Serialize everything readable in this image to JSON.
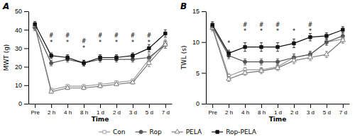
{
  "chart_data": [
    {
      "type": "line",
      "title": "A",
      "xlabel": "Time",
      "ylabel": "MWT (g)",
      "categories": [
        "Pre",
        "2 h",
        "4 h",
        "8 h",
        "1 d",
        "2 d",
        "3 d",
        "5 d",
        "7 d"
      ],
      "ylim": [
        0,
        50
      ],
      "yticks": [
        0,
        10,
        20,
        30,
        40,
        50
      ],
      "legend": "bottom",
      "series": [
        {
          "name": "Con",
          "color": "#999999",
          "marker": "square-open",
          "values": [
            42,
            7.5,
            9.5,
            9.5,
            10.5,
            11.5,
            12.5,
            24,
            33
          ],
          "errors": [
            1.5,
            0.8,
            0.8,
            0.8,
            0.8,
            0.8,
            0.8,
            2,
            2
          ]
        },
        {
          "name": "Rop",
          "color": "#555555",
          "marker": "circle",
          "values": [
            41,
            22,
            24,
            22,
            24,
            24,
            24,
            25,
            32
          ],
          "errors": [
            1.5,
            1.5,
            1.5,
            1.5,
            1.5,
            1.5,
            1.5,
            2,
            2
          ]
        },
        {
          "name": "PELA",
          "color": "#777777",
          "marker": "triangle-open",
          "values": [
            42,
            6.5,
            8.5,
            8.5,
            9.5,
            10.5,
            11.5,
            22,
            32
          ],
          "errors": [
            1.5,
            0.8,
            0.8,
            0.8,
            0.8,
            0.8,
            0.8,
            2,
            2
          ]
        },
        {
          "name": "Rop-PELA",
          "color": "#111111",
          "marker": "square",
          "values": [
            43,
            26,
            25,
            22,
            25,
            25,
            26,
            30,
            38
          ],
          "errors": [
            1.5,
            1.5,
            1.5,
            1.5,
            1.5,
            1.5,
            1.5,
            2,
            2
          ]
        }
      ],
      "annotations": [
        {
          "text": "*",
          "x": "2 h",
          "y": 32
        },
        {
          "text": "*",
          "x": "4 h",
          "y": 32
        },
        {
          "text": "*",
          "x": "8 h",
          "y": 29
        },
        {
          "text": "*",
          "x": "1 d",
          "y": 32
        },
        {
          "text": "*",
          "x": "2 d",
          "y": 32
        },
        {
          "text": "*",
          "x": "3 d",
          "y": 32
        },
        {
          "text": "*",
          "x": "5 d",
          "y": 32
        },
        {
          "text": "#",
          "x": "2 h",
          "y": 36
        },
        {
          "text": "#",
          "x": "4 h",
          "y": 36
        },
        {
          "text": "#",
          "x": "8 h",
          "y": 33
        },
        {
          "text": "#",
          "x": "1 d",
          "y": 36
        },
        {
          "text": "#",
          "x": "2 d",
          "y": 36
        },
        {
          "text": "#",
          "x": "3 d",
          "y": 36
        },
        {
          "text": "#",
          "x": "5 d",
          "y": 36
        }
      ]
    },
    {
      "type": "line",
      "title": "B",
      "xlabel": "Time",
      "ylabel": "TWL (s)",
      "categories": [
        "Pre",
        "2 h",
        "4 h",
        "8 h",
        "1 d",
        "2 d",
        "3 d",
        "5 d",
        "7 d"
      ],
      "ylim": [
        0,
        15
      ],
      "yticks": [
        0,
        5,
        10,
        15
      ],
      "series": [
        {
          "name": "Con",
          "color": "#999999",
          "marker": "square-open",
          "values": [
            12.5,
            4.5,
            5.5,
            5.5,
            6.0,
            7.5,
            8.0,
            10.0,
            10.5
          ],
          "errors": [
            0.5,
            0.4,
            0.4,
            0.4,
            0.4,
            0.5,
            0.5,
            0.5,
            0.5
          ]
        },
        {
          "name": "Rop",
          "color": "#555555",
          "marker": "circle",
          "values": [
            12.5,
            7.8,
            6.8,
            6.8,
            6.8,
            7.5,
            8.0,
            10.0,
            11.0
          ],
          "errors": [
            0.5,
            0.5,
            0.5,
            0.5,
            0.5,
            0.6,
            0.5,
            0.5,
            0.5
          ]
        },
        {
          "name": "PELA",
          "color": "#777777",
          "marker": "triangle-open",
          "values": [
            12.3,
            4.0,
            5.0,
            5.3,
            5.8,
            7.0,
            7.5,
            8.0,
            10.3
          ],
          "errors": [
            0.5,
            0.4,
            0.4,
            0.4,
            0.4,
            0.5,
            0.5,
            0.5,
            0.5
          ]
        },
        {
          "name": "Rop-PELA",
          "color": "#111111",
          "marker": "square",
          "values": [
            12.8,
            8.2,
            9.2,
            9.2,
            9.2,
            9.8,
            10.8,
            11.0,
            12.0
          ],
          "errors": [
            0.5,
            0.5,
            0.7,
            0.7,
            0.7,
            0.7,
            0.6,
            0.5,
            0.5
          ]
        }
      ],
      "annotations": [
        {
          "text": "*",
          "x": "2 h",
          "y": 9.5
        },
        {
          "text": "*",
          "x": "4 h",
          "y": 11.5
        },
        {
          "text": "*",
          "x": "8 h",
          "y": 11.5
        },
        {
          "text": "*",
          "x": "1 d",
          "y": 11.5
        },
        {
          "text": "*",
          "x": "2 d",
          "y": 11.5
        },
        {
          "text": "*",
          "x": "3 d",
          "y": 11.5
        },
        {
          "text": "#",
          "x": "4 h",
          "y": 12.5
        },
        {
          "text": "#",
          "x": "8 h",
          "y": 12.5
        },
        {
          "text": "#",
          "x": "1 d",
          "y": 12.5
        },
        {
          "text": "#",
          "x": "3 d",
          "y": 12.5
        }
      ]
    }
  ]
}
